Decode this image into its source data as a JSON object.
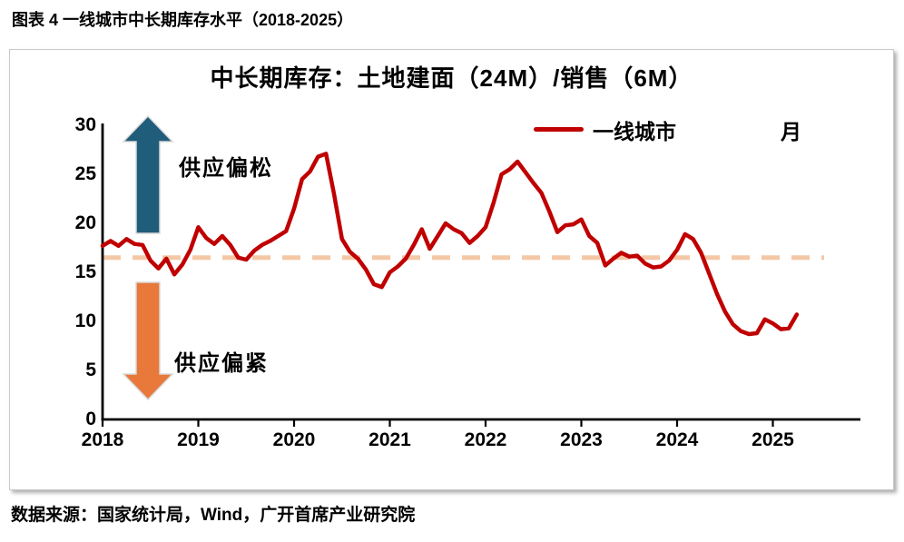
{
  "figure_title": "图表 4 一线城市中长期库存水平（2018-2025）",
  "source": "数据来源：国家统计局，Wind，广开首席产业研究院",
  "chart_data": {
    "type": "line",
    "title": "中长期库存：土地建面（24M）/销售（6M）",
    "unit_label": "月",
    "legend_position": "top-right-inside",
    "grid": false,
    "x_ticks": [
      "2018",
      "2019",
      "2020",
      "2021",
      "2022",
      "2023",
      "2024",
      "2025"
    ],
    "y_ticks": [
      0,
      5,
      10,
      15,
      20,
      25,
      30
    ],
    "ylim": [
      0,
      30
    ],
    "x_start": "2018-01",
    "x_end": "2025-04",
    "x_frequency": "monthly",
    "series": [
      {
        "name": "一线城市",
        "color": "#C00000",
        "values": [
          17.7,
          18.2,
          17.7,
          18.4,
          17.9,
          17.8,
          16.2,
          15.4,
          16.4,
          14.8,
          15.8,
          17.3,
          19.6,
          18.5,
          17.9,
          18.7,
          17.8,
          16.5,
          16.3,
          17.2,
          17.8,
          18.2,
          18.7,
          19.2,
          21.5,
          24.5,
          25.3,
          26.8,
          27.1,
          23.0,
          18.4,
          17.1,
          16.4,
          15.3,
          13.8,
          13.5,
          15.0,
          15.6,
          16.4,
          17.8,
          19.4,
          17.4,
          18.7,
          20.0,
          19.4,
          19.0,
          18.0,
          18.7,
          19.6,
          22.1,
          25.0,
          25.5,
          26.3,
          25.2,
          24.1,
          23.1,
          21.2,
          19.1,
          19.8,
          19.9,
          20.4,
          18.7,
          18.0,
          15.7,
          16.4,
          17.0,
          16.6,
          16.7,
          15.9,
          15.5,
          15.6,
          16.2,
          17.3,
          18.9,
          18.4,
          17.0,
          14.9,
          12.8,
          11.0,
          9.7,
          9.0,
          8.7,
          8.8,
          10.2,
          9.8,
          9.2,
          9.3,
          10.7
        ]
      }
    ],
    "reference_line": {
      "value": 16.5,
      "style": "dashed",
      "color": "#F4C7A5"
    },
    "annotations": [
      {
        "text": "供应偏松",
        "arrow": "up",
        "arrow_color": "#1F5D7A"
      },
      {
        "text": "供应偏紧",
        "arrow": "down",
        "arrow_color": "#E8793B"
      }
    ],
    "axis_color": "#000000"
  }
}
